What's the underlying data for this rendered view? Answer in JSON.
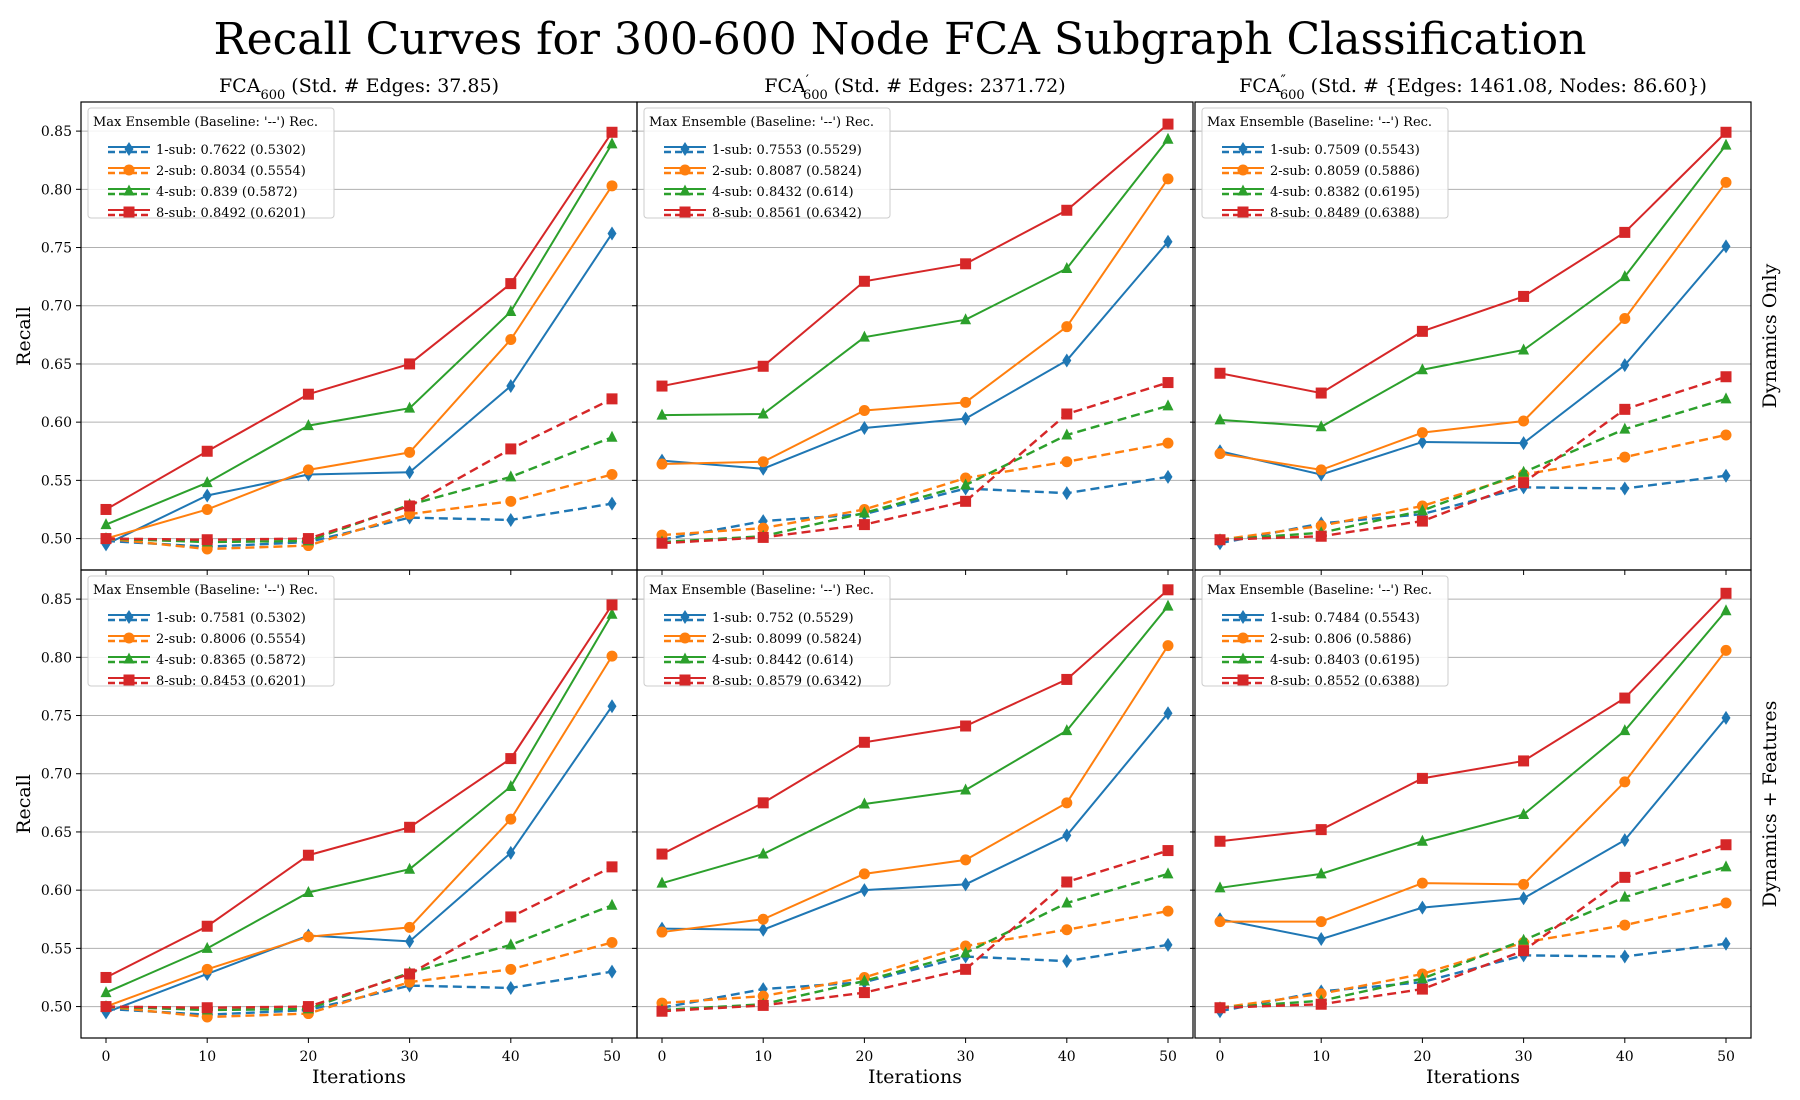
{
  "figure_title": "Recall Curves for 300-600 Node FCA Subgraph Classification",
  "x_label": "Iterations",
  "y_label": "Recall",
  "row_labels": [
    "Dynamics Only",
    "Dynamics + Features"
  ],
  "column_titles": [
    {
      "base": "FCA",
      "sub": "600",
      "prime": "",
      "rest": " (Std. # Edges: 37.85)"
    },
    {
      "base": "FCA",
      "sub": "600",
      "prime": "′",
      "rest": " (Std. # Edges: 2371.72)"
    },
    {
      "base": "FCA",
      "sub": "600",
      "prime": "″",
      "rest": " (Std. # {Edges: 1461.08, Nodes: 86.60})"
    }
  ],
  "legend_title": "Max Ensemble (Baseline: '--') Rec.",
  "series_style": [
    {
      "name": "1-sub",
      "color": "#1f77b4",
      "marker": "diamond"
    },
    {
      "name": "2-sub",
      "color": "#ff7f0e",
      "marker": "circle"
    },
    {
      "name": "4-sub",
      "color": "#2ca02c",
      "marker": "triangle"
    },
    {
      "name": "8-sub",
      "color": "#d62728",
      "marker": "square"
    }
  ],
  "chart_data": [
    {
      "type": "line",
      "row": "Dynamics Only",
      "column": 0,
      "x": [
        0,
        10,
        20,
        30,
        40,
        50
      ],
      "ylim": [
        0.473,
        0.875
      ],
      "yticks": [
        "0.50",
        "0.55",
        "0.60",
        "0.65",
        "0.70",
        "0.75",
        "0.80",
        "0.85"
      ],
      "xticks": [
        "0",
        "10",
        "20",
        "30",
        "40",
        "50"
      ],
      "legend": [
        "1-sub: 0.7622 (0.5302)",
        "2-sub: 0.8034 (0.5554)",
        "4-sub: 0.839 (0.5872)",
        "8-sub: 0.8492 (0.6201)"
      ],
      "series": [
        {
          "name": "1-sub",
          "ensemble": [
            0.495,
            0.537,
            0.555,
            0.557,
            0.631,
            0.762
          ],
          "baseline": [
            0.498,
            0.493,
            0.497,
            0.518,
            0.516,
            0.53
          ]
        },
        {
          "name": "2-sub",
          "ensemble": [
            0.5,
            0.525,
            0.559,
            0.574,
            0.671,
            0.803
          ],
          "baseline": [
            0.5,
            0.491,
            0.494,
            0.521,
            0.532,
            0.555
          ]
        },
        {
          "name": "4-sub",
          "ensemble": [
            0.512,
            0.548,
            0.597,
            0.612,
            0.695,
            0.839
          ],
          "baseline": [
            0.5,
            0.497,
            0.498,
            0.529,
            0.553,
            0.587
          ]
        },
        {
          "name": "8-sub",
          "ensemble": [
            0.525,
            0.575,
            0.624,
            0.65,
            0.719,
            0.849
          ],
          "baseline": [
            0.5,
            0.499,
            0.5,
            0.528,
            0.577,
            0.62
          ]
        }
      ]
    },
    {
      "type": "line",
      "row": "Dynamics Only",
      "column": 1,
      "x": [
        0,
        10,
        20,
        30,
        40,
        50
      ],
      "ylim": [
        0.473,
        0.875
      ],
      "yticks": [],
      "xticks": [
        "0",
        "10",
        "20",
        "30",
        "40",
        "50"
      ],
      "legend": [
        "1-sub: 0.7553 (0.5529)",
        "2-sub: 0.8087 (0.5824)",
        "4-sub: 0.8432 (0.614)",
        "8-sub: 0.8561 (0.6342)"
      ],
      "series": [
        {
          "name": "1-sub",
          "ensemble": [
            0.567,
            0.56,
            0.595,
            0.603,
            0.653,
            0.755
          ],
          "baseline": [
            0.499,
            0.515,
            0.521,
            0.543,
            0.539,
            0.553
          ]
        },
        {
          "name": "2-sub",
          "ensemble": [
            0.564,
            0.566,
            0.61,
            0.617,
            0.682,
            0.809
          ],
          "baseline": [
            0.503,
            0.509,
            0.525,
            0.552,
            0.566,
            0.582
          ]
        },
        {
          "name": "4-sub",
          "ensemble": [
            0.606,
            0.607,
            0.673,
            0.688,
            0.732,
            0.843
          ],
          "baseline": [
            0.497,
            0.502,
            0.522,
            0.546,
            0.589,
            0.614
          ]
        },
        {
          "name": "8-sub",
          "ensemble": [
            0.631,
            0.648,
            0.721,
            0.736,
            0.782,
            0.856
          ],
          "baseline": [
            0.496,
            0.501,
            0.512,
            0.532,
            0.607,
            0.634
          ]
        }
      ]
    },
    {
      "type": "line",
      "row": "Dynamics Only",
      "column": 2,
      "x": [
        0,
        10,
        20,
        30,
        40,
        50
      ],
      "ylim": [
        0.473,
        0.875
      ],
      "yticks": [],
      "xticks": [
        "0",
        "10",
        "20",
        "30",
        "40",
        "50"
      ],
      "legend": [
        "1-sub: 0.7509 (0.5543)",
        "2-sub: 0.8059 (0.5886)",
        "4-sub: 0.8382 (0.6195)",
        "8-sub: 0.8489 (0.6388)"
      ],
      "series": [
        {
          "name": "1-sub",
          "ensemble": [
            0.575,
            0.555,
            0.583,
            0.582,
            0.649,
            0.751
          ],
          "baseline": [
            0.496,
            0.513,
            0.521,
            0.544,
            0.543,
            0.554
          ]
        },
        {
          "name": "2-sub",
          "ensemble": [
            0.573,
            0.559,
            0.591,
            0.601,
            0.689,
            0.806
          ],
          "baseline": [
            0.499,
            0.511,
            0.528,
            0.555,
            0.57,
            0.589
          ]
        },
        {
          "name": "4-sub",
          "ensemble": [
            0.602,
            0.596,
            0.645,
            0.662,
            0.725,
            0.838
          ],
          "baseline": [
            0.499,
            0.505,
            0.524,
            0.557,
            0.594,
            0.62
          ]
        },
        {
          "name": "8-sub",
          "ensemble": [
            0.642,
            0.625,
            0.678,
            0.708,
            0.763,
            0.849
          ],
          "baseline": [
            0.499,
            0.502,
            0.515,
            0.548,
            0.611,
            0.639
          ]
        }
      ]
    },
    {
      "type": "line",
      "row": "Dynamics + Features",
      "column": 0,
      "x": [
        0,
        10,
        20,
        30,
        40,
        50
      ],
      "ylim": [
        0.473,
        0.875
      ],
      "yticks": [
        "0.50",
        "0.55",
        "0.60",
        "0.65",
        "0.70",
        "0.75",
        "0.80",
        "0.85"
      ],
      "xticks": [
        "0",
        "10",
        "20",
        "30",
        "40",
        "50"
      ],
      "legend": [
        "1-sub: 0.7581 (0.5302)",
        "2-sub: 0.8006 (0.5554)",
        "4-sub: 0.8365 (0.5872)",
        "8-sub: 0.8453 (0.6201)"
      ],
      "series": [
        {
          "name": "1-sub",
          "ensemble": [
            0.495,
            0.528,
            0.561,
            0.556,
            0.632,
            0.758
          ],
          "baseline": [
            0.498,
            0.493,
            0.497,
            0.518,
            0.516,
            0.53
          ]
        },
        {
          "name": "2-sub",
          "ensemble": [
            0.5,
            0.532,
            0.56,
            0.568,
            0.661,
            0.801
          ],
          "baseline": [
            0.5,
            0.491,
            0.494,
            0.521,
            0.532,
            0.555
          ]
        },
        {
          "name": "4-sub",
          "ensemble": [
            0.512,
            0.55,
            0.598,
            0.618,
            0.689,
            0.837
          ],
          "baseline": [
            0.5,
            0.497,
            0.498,
            0.529,
            0.553,
            0.587
          ]
        },
        {
          "name": "8-sub",
          "ensemble": [
            0.525,
            0.569,
            0.63,
            0.654,
            0.713,
            0.845
          ],
          "baseline": [
            0.5,
            0.499,
            0.5,
            0.528,
            0.577,
            0.62
          ]
        }
      ]
    },
    {
      "type": "line",
      "row": "Dynamics + Features",
      "column": 1,
      "x": [
        0,
        10,
        20,
        30,
        40,
        50
      ],
      "ylim": [
        0.473,
        0.875
      ],
      "yticks": [],
      "xticks": [
        "0",
        "10",
        "20",
        "30",
        "40",
        "50"
      ],
      "legend": [
        "1-sub: 0.752 (0.5529)",
        "2-sub: 0.8099 (0.5824)",
        "4-sub: 0.8442 (0.614)",
        "8-sub: 0.8579 (0.6342)"
      ],
      "series": [
        {
          "name": "1-sub",
          "ensemble": [
            0.567,
            0.566,
            0.6,
            0.605,
            0.647,
            0.752
          ],
          "baseline": [
            0.499,
            0.515,
            0.521,
            0.543,
            0.539,
            0.553
          ]
        },
        {
          "name": "2-sub",
          "ensemble": [
            0.564,
            0.575,
            0.614,
            0.626,
            0.675,
            0.81
          ],
          "baseline": [
            0.503,
            0.509,
            0.525,
            0.552,
            0.566,
            0.582
          ]
        },
        {
          "name": "4-sub",
          "ensemble": [
            0.606,
            0.631,
            0.674,
            0.686,
            0.737,
            0.844
          ],
          "baseline": [
            0.497,
            0.502,
            0.522,
            0.546,
            0.589,
            0.614
          ]
        },
        {
          "name": "8-sub",
          "ensemble": [
            0.631,
            0.675,
            0.727,
            0.741,
            0.781,
            0.858
          ],
          "baseline": [
            0.496,
            0.501,
            0.512,
            0.532,
            0.607,
            0.634
          ]
        }
      ]
    },
    {
      "type": "line",
      "row": "Dynamics + Features",
      "column": 2,
      "x": [
        0,
        10,
        20,
        30,
        40,
        50
      ],
      "ylim": [
        0.473,
        0.875
      ],
      "yticks": [],
      "xticks": [
        "0",
        "10",
        "20",
        "30",
        "40",
        "50"
      ],
      "legend": [
        "1-sub: 0.7484 (0.5543)",
        "2-sub: 0.806 (0.5886)",
        "4-sub: 0.8403 (0.6195)",
        "8-sub: 0.8552 (0.6388)"
      ],
      "series": [
        {
          "name": "1-sub",
          "ensemble": [
            0.575,
            0.558,
            0.585,
            0.593,
            0.643,
            0.748
          ],
          "baseline": [
            0.496,
            0.513,
            0.521,
            0.544,
            0.543,
            0.554
          ]
        },
        {
          "name": "2-sub",
          "ensemble": [
            0.573,
            0.573,
            0.606,
            0.605,
            0.693,
            0.806
          ],
          "baseline": [
            0.499,
            0.511,
            0.528,
            0.555,
            0.57,
            0.589
          ]
        },
        {
          "name": "4-sub",
          "ensemble": [
            0.602,
            0.614,
            0.642,
            0.665,
            0.737,
            0.84
          ],
          "baseline": [
            0.499,
            0.505,
            0.524,
            0.557,
            0.594,
            0.62
          ]
        },
        {
          "name": "8-sub",
          "ensemble": [
            0.642,
            0.652,
            0.696,
            0.711,
            0.765,
            0.855
          ],
          "baseline": [
            0.499,
            0.502,
            0.515,
            0.548,
            0.611,
            0.639
          ]
        }
      ]
    }
  ]
}
